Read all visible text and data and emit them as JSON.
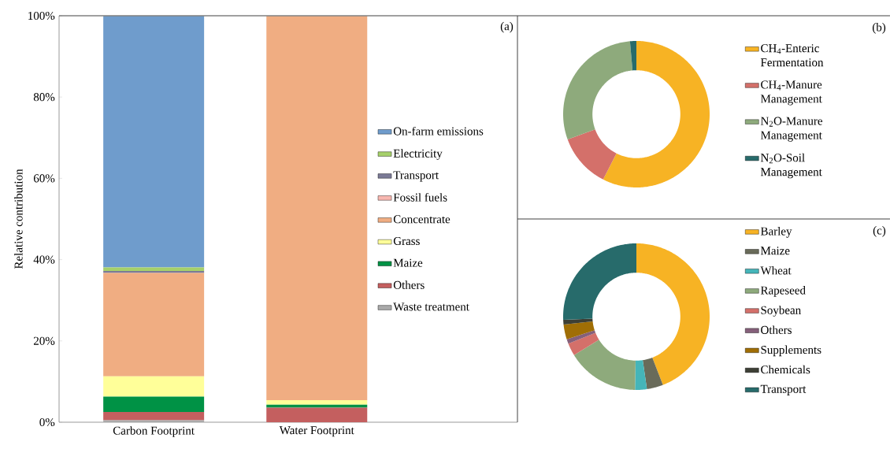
{
  "chart_data": [
    {
      "type": "bar",
      "stacked": true,
      "categories": [
        "Carbon Footprint",
        "Water Footprint"
      ],
      "ylabel": "Relative contribution",
      "ylim": [
        0,
        100
      ],
      "yticks": [
        {
          "value": 0,
          "label": "0%"
        },
        {
          "value": 20,
          "label": "20%"
        },
        {
          "value": 40,
          "label": "40%"
        },
        {
          "value": 60,
          "label": "60%"
        },
        {
          "value": 80,
          "label": "80%"
        },
        {
          "value": 100,
          "label": "100%"
        }
      ],
      "legend": "right",
      "annotations": [
        "(a)"
      ],
      "series": [
        {
          "name": "Waste treatment",
          "color": "#aaaaaa",
          "values": [
            0.5,
            0
          ]
        },
        {
          "name": "Others",
          "color": "#c45f5f",
          "values": [
            2.0,
            3.6
          ]
        },
        {
          "name": "Maize",
          "color": "#009245",
          "values": [
            3.8,
            0.7
          ]
        },
        {
          "name": "Grass",
          "color": "#ffff99",
          "values": [
            5.0,
            1.1
          ]
        },
        {
          "name": "Concentrate",
          "color": "#f0ad82",
          "values": [
            25.4,
            94.5
          ]
        },
        {
          "name": "Fossil fuels",
          "color": "#f8b7b0",
          "values": [
            null,
            0
          ]
        },
        {
          "name": "Transport",
          "color": "#7b7a96",
          "values": [
            0.5,
            0
          ]
        },
        {
          "name": "Electricity",
          "color": "#a6d06a",
          "values": [
            0.9,
            null
          ]
        },
        {
          "name": "On-farm emissions",
          "color": "#6f9ccc",
          "values": [
            61.8,
            0
          ]
        }
      ]
    },
    {
      "type": "donut",
      "legend": "right",
      "annotations": [
        "(b)"
      ],
      "categories": [
        "CH$_{4}$-Enteric Fermentation",
        "CH$_{4}$-Manure Management",
        "N$_{2}$O-Manure Management",
        "N$_{2}$O-Soil Management"
      ],
      "values": [
        57.5,
        11.9,
        29.2,
        1.4
      ],
      "colors": [
        "#f7b324",
        "#d4706a",
        "#8eaa7c",
        "#276b6b"
      ]
    },
    {
      "type": "donut",
      "legend": "right",
      "annotations": [
        "(c)"
      ],
      "categories": [
        "Barley",
        "Maize",
        "Wheat",
        "Rapeseed",
        "Soybean",
        "Others",
        "Supplements",
        "Chemicals",
        "Transport"
      ],
      "values": [
        44.1,
        3.6,
        2.6,
        15.9,
        2.8,
        1.0,
        3.3,
        1.0,
        25.7
      ],
      "colors": [
        "#f7b324",
        "#696b5a",
        "#45b5b9",
        "#8eaa7c",
        "#d4706a",
        "#85607a",
        "#a06e05",
        "#3d3f35",
        "#276b6b"
      ]
    }
  ]
}
